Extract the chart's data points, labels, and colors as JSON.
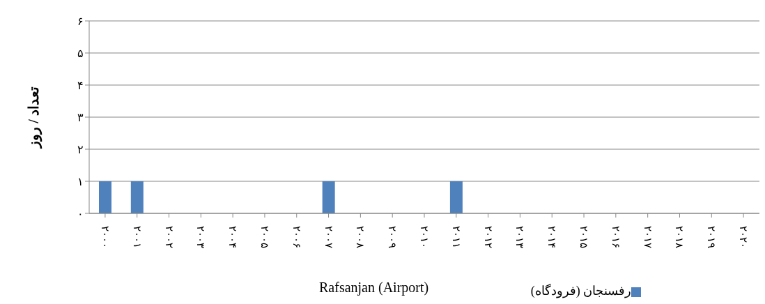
{
  "chart_data": {
    "type": "bar",
    "xlabel": "Rafsanjan (Airport)",
    "ylabel": "تعداد / روز",
    "categories": [
      "۲۰۰۰",
      "۲۰۰۱",
      "۲۰۰۲",
      "۲۰۰۳",
      "۲۰۰۴",
      "۲۰۰۵",
      "۲۰۰۶",
      "۲۰۰۷",
      "۲۰۰۸",
      "۲۰۰۹",
      "۲۰۱۰",
      "۲۰۱۱",
      "۲۰۱۲",
      "۲۰۱۳",
      "۲۰۱۴",
      "۲۰۱۵",
      "۲۰۱۶",
      "۲۰۱۷",
      "۲۰۱۸",
      "۲۰۱۹",
      "۲۰۲۰"
    ],
    "series": [
      {
        "name": "رفسنجان (فرودگاه)",
        "color": "#4f81bd",
        "values": [
          1,
          1,
          0,
          0,
          0,
          0,
          0,
          1,
          0,
          0,
          0,
          1,
          0,
          0,
          0,
          0,
          0,
          0,
          0,
          0,
          0
        ]
      }
    ],
    "ylim": [
      0,
      6
    ],
    "yticks": [
      {
        "value": 0,
        "label": "۰"
      },
      {
        "value": 1,
        "label": "۱"
      },
      {
        "value": 2,
        "label": "۲"
      },
      {
        "value": 3,
        "label": "۳"
      },
      {
        "value": 4,
        "label": "۴"
      },
      {
        "value": 5,
        "label": "۵"
      },
      {
        "value": 6,
        "label": "۶"
      }
    ],
    "grid": "y",
    "legend": "bottom"
  }
}
